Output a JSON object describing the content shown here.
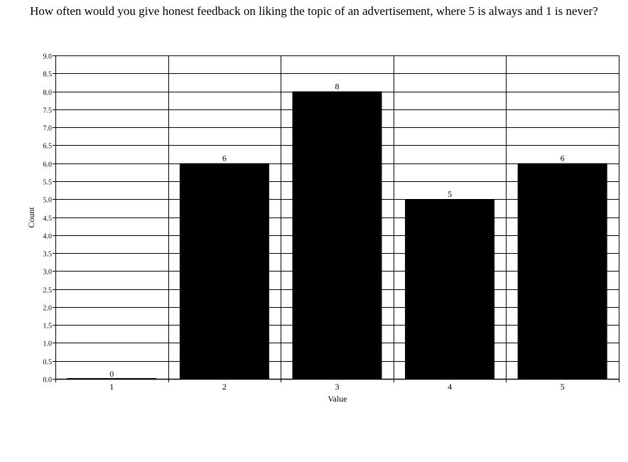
{
  "chart_data": {
    "type": "bar",
    "title": "How often would you give honest feedback on liking the topic of an advertisement, where 5 is always and 1 is never?",
    "xlabel": "Value",
    "ylabel": "Count",
    "categories": [
      "1",
      "2",
      "3",
      "4",
      "5"
    ],
    "values": [
      0,
      6,
      8,
      5,
      6
    ],
    "data_labels": [
      "0",
      "6",
      "8",
      "5",
      "6"
    ],
    "ylim": [
      0,
      9
    ],
    "y_ticks": [
      "0.0",
      "0.5",
      "1.0",
      "1.5",
      "2.0",
      "2.5",
      "3.0",
      "3.5",
      "4.0",
      "4.5",
      "5.0",
      "5.5",
      "6.0",
      "6.5",
      "7.0",
      "7.5",
      "8.0",
      "8.5",
      "9.0"
    ],
    "grid": true,
    "bar_color": "#000000",
    "legend": "none"
  }
}
